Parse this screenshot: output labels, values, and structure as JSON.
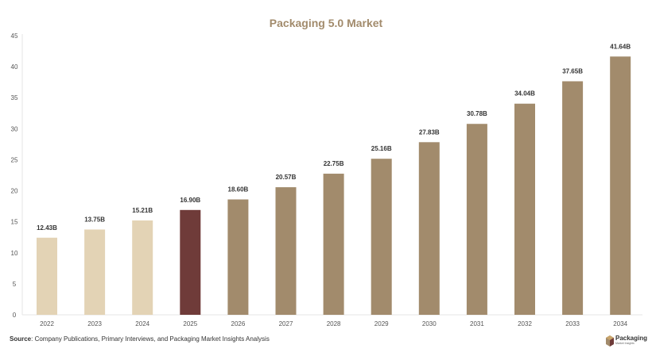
{
  "chart_data": {
    "type": "bar",
    "title": "Packaging 5.0 Market",
    "categories": [
      "2022",
      "2023",
      "2024",
      "2025",
      "2026",
      "2027",
      "2028",
      "2029",
      "2030",
      "2031",
      "2032",
      "2033",
      "2034"
    ],
    "values": [
      12.43,
      13.75,
      15.21,
      16.9,
      18.6,
      20.57,
      22.75,
      25.16,
      27.83,
      30.78,
      34.04,
      37.65,
      41.64
    ],
    "data_labels": [
      "12.43B",
      "13.75B",
      "15.21B",
      "16.90B",
      "18.60B",
      "20.57B",
      "22.75B",
      "25.16B",
      "27.83B",
      "30.78B",
      "34.04B",
      "37.65B",
      "41.64B"
    ],
    "yticks": [
      0,
      5,
      10,
      15,
      20,
      25,
      30,
      35,
      40,
      45
    ],
    "ylim": [
      0,
      45
    ],
    "xlabel": "",
    "ylabel": "",
    "grid": false,
    "colors": {
      "historical": "#e3d3b5",
      "current": "#6f3b39",
      "forecast": "#a28b6c",
      "title": "#a28b6c"
    },
    "bar_groups": [
      "historical",
      "historical",
      "historical",
      "current",
      "forecast",
      "forecast",
      "forecast",
      "forecast",
      "forecast",
      "forecast",
      "forecast",
      "forecast",
      "forecast"
    ]
  },
  "footer": {
    "source_label": "Source",
    "source_text": ": Company Publications, Primary Interviews, and Packaging Market Insights Analysis"
  },
  "logo": {
    "name": "Packaging",
    "tagline": "Market Insights",
    "icon": "box-icon"
  }
}
